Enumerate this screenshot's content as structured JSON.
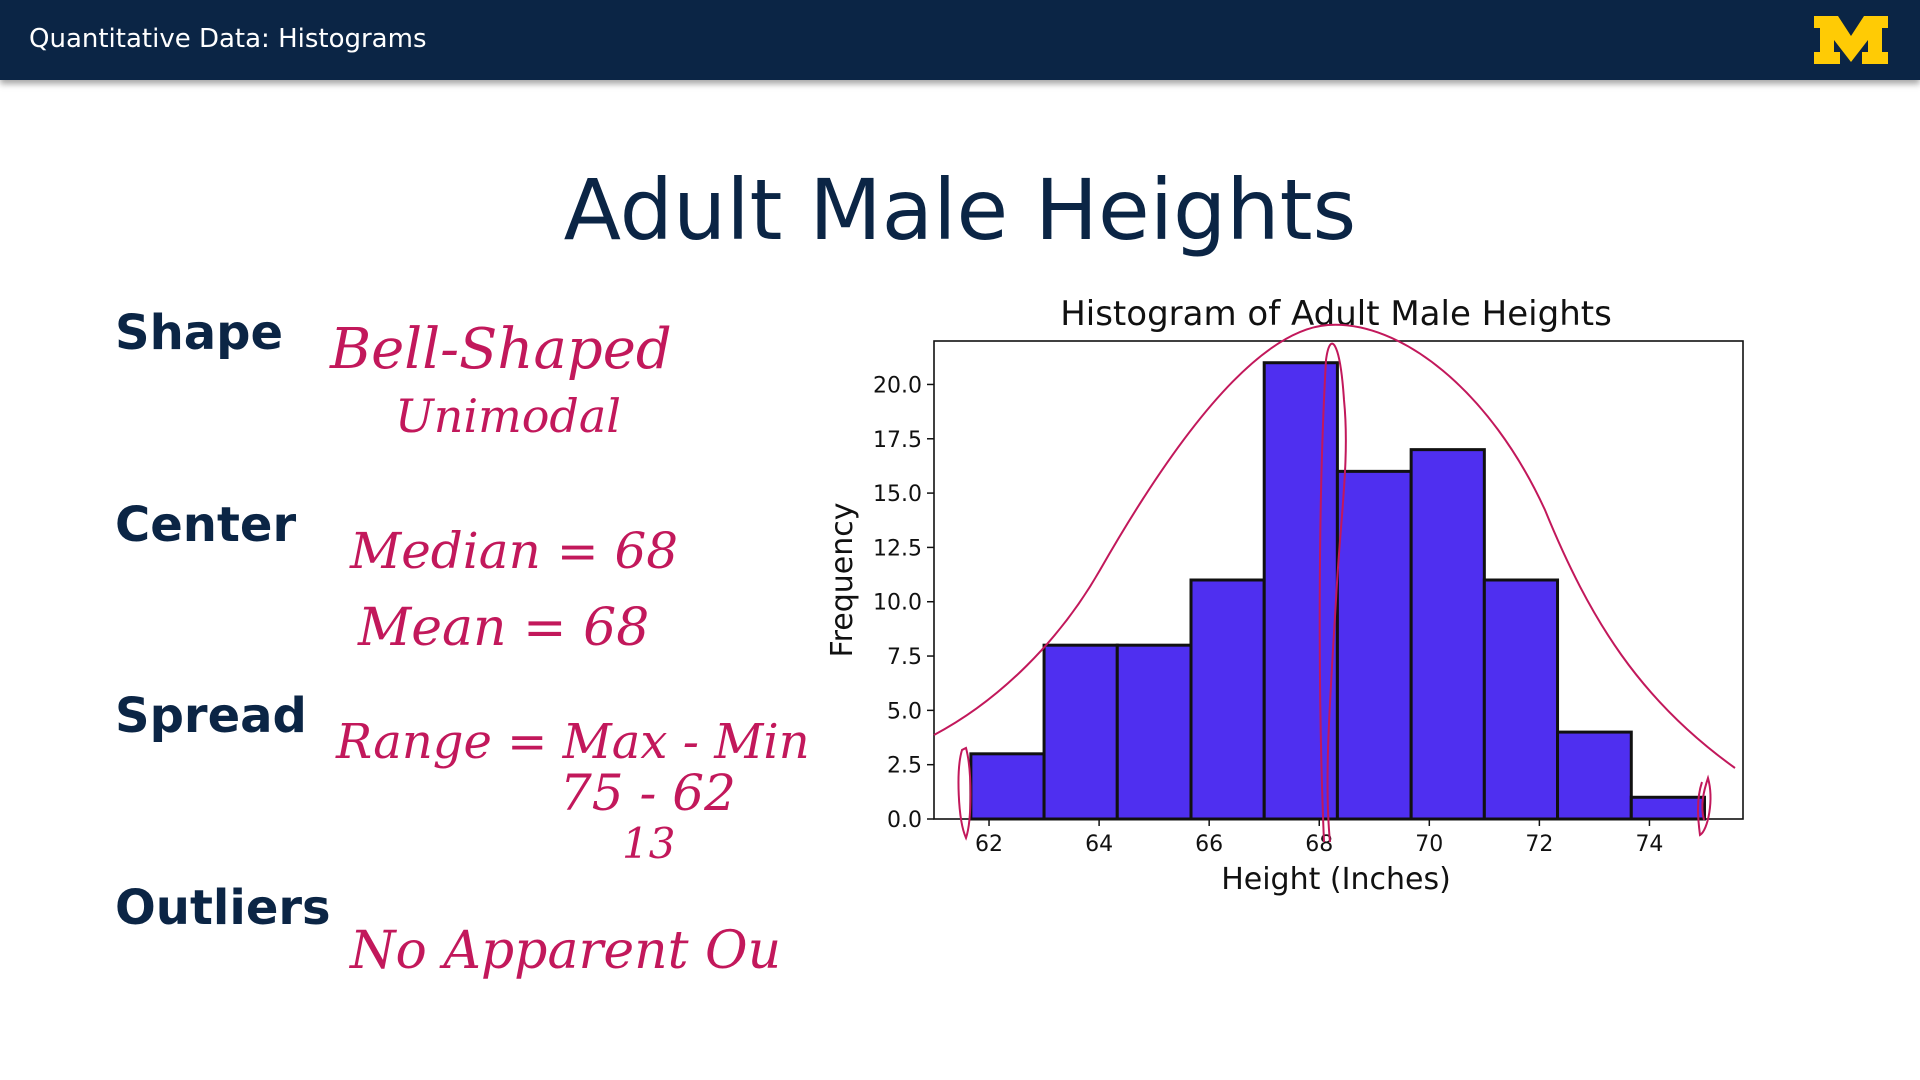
{
  "header": {
    "title": "Quantitative Data: Histograms",
    "logo_text": "M"
  },
  "slide": {
    "title": "Adult Male Heights",
    "labels": {
      "shape": "Shape",
      "center": "Center",
      "spread": "Spread",
      "outliers": "Outliers"
    }
  },
  "annotations": {
    "shape_line1": "Bell-Shaped",
    "shape_line2": "Unimodal",
    "center_line1": "Median = 68",
    "center_line2": "Mean = 68",
    "spread_line1": "Range = Max - Min",
    "spread_line2": "75 - 62",
    "spread_line3": "13",
    "outliers_line1": "No Apparent Ou",
    "ink_color": "#c2185b"
  },
  "chart_data": {
    "type": "bar",
    "title": "Histogram of Adult Male Heights",
    "xlabel": "Height (Inches)",
    "ylabel": "Frequency",
    "bin_edges": [
      61.67,
      63.0,
      64.33,
      65.67,
      67.0,
      68.33,
      69.67,
      71.0,
      72.33,
      73.67,
      75.0
    ],
    "values": [
      3,
      8,
      8,
      11,
      21,
      16,
      17,
      11,
      4,
      1
    ],
    "xlim": [
      61.0,
      75.7
    ],
    "ylim": [
      0,
      22.0
    ],
    "xticks": [
      62,
      64,
      66,
      68,
      70,
      72,
      74
    ],
    "yticks": [
      "0.0",
      "2.5",
      "5.0",
      "7.5",
      "10.0",
      "12.5",
      "15.0",
      "17.5",
      "20.0"
    ],
    "bar_color": "#4f2ff0",
    "edge_color": "#111111",
    "grid": false
  }
}
